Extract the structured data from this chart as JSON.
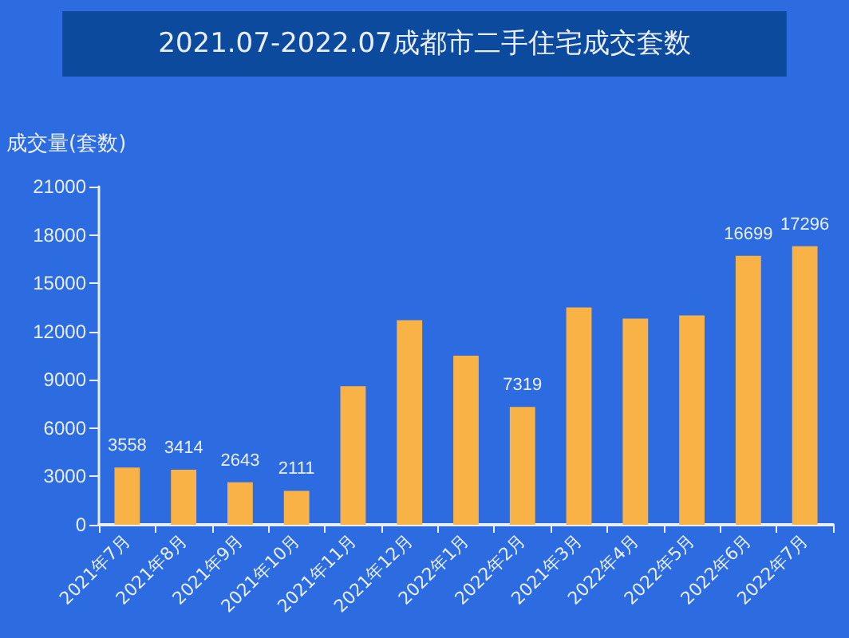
{
  "chart_data": {
    "type": "bar",
    "title": "2021.07-2022.07成都市二手住宅成交套数",
    "ylabel": "成交量(套数)",
    "categories": [
      "2021年7月",
      "2021年8月",
      "2021年9月",
      "2021年10月",
      "2021年11月",
      "2021年12月",
      "2022年1月",
      "2022年2月",
      "2021年3月",
      "2022年4月",
      "2022年5月",
      "2022年6月",
      "2022年7月"
    ],
    "values": [
      3558,
      3414,
      2643,
      2111,
      8600,
      12700,
      10500,
      7319,
      13500,
      12800,
      13000,
      16699,
      17296
    ],
    "value_labels": [
      "3558",
      "3414",
      "2643",
      "2111",
      null,
      null,
      null,
      "7319",
      null,
      null,
      null,
      "16699",
      "17296"
    ],
    "color": "#f8b245",
    "ylim": [
      0,
      21000
    ],
    "yticks": [
      0,
      3000,
      6000,
      9000,
      12000,
      15000,
      18000,
      21000
    ],
    "grid": false
  }
}
